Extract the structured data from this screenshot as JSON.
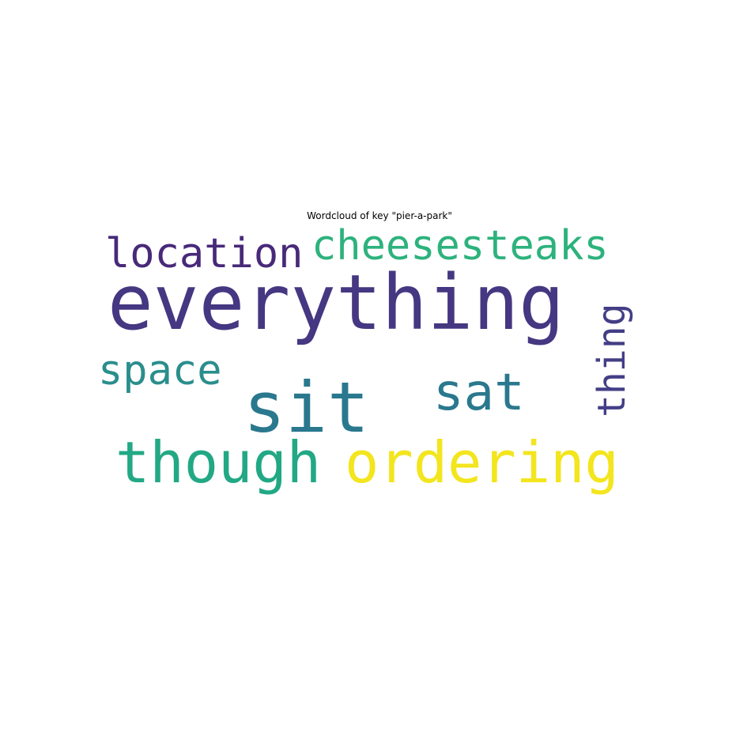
{
  "chart_data": {
    "type": "wordcloud",
    "title": "Wordcloud of key \"pier-a-park\"",
    "words": [
      {
        "text": "everything",
        "weight": 1.0,
        "color": "#453781"
      },
      {
        "text": "sit",
        "weight": 0.92,
        "color": "#2a788e"
      },
      {
        "text": "ordering",
        "weight": 0.74,
        "color": "#f3e51e"
      },
      {
        "text": "though",
        "weight": 0.74,
        "color": "#22a884"
      },
      {
        "text": "sat",
        "weight": 0.64,
        "color": "#2a788e"
      },
      {
        "text": "cheesesteaks",
        "weight": 0.55,
        "color": "#2db27d"
      },
      {
        "text": "location",
        "weight": 0.53,
        "color": "#482979"
      },
      {
        "text": "space",
        "weight": 0.53,
        "color": "#2a8e8c"
      },
      {
        "text": "thing",
        "weight": 0.5,
        "color": "#433e85"
      }
    ]
  }
}
